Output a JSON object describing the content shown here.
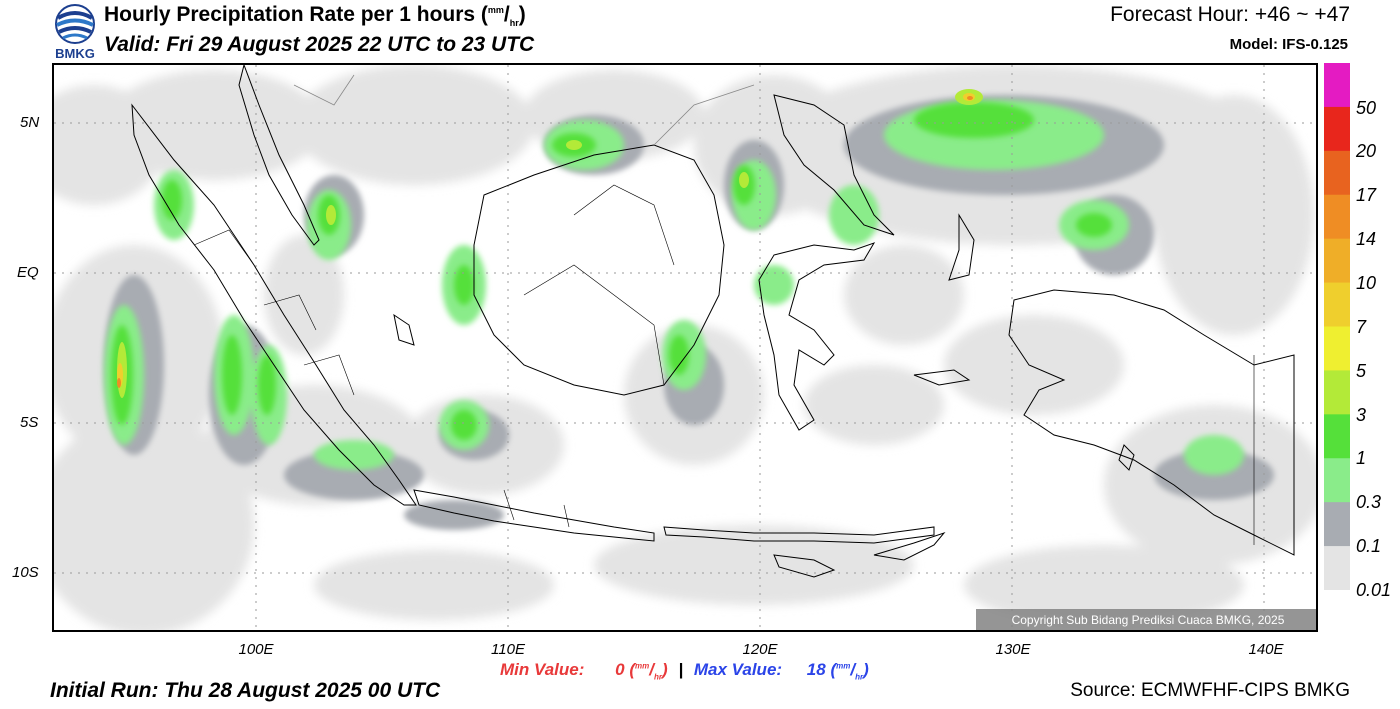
{
  "header": {
    "title_text": "Hourly Precipitation Rate per 1 hours (",
    "unit_num": "mm",
    "unit_sep": "/",
    "unit_den": "hr",
    "title_close": ")",
    "valid": "Valid: Fri 29 August 2025 22 UTC to 23 UTC",
    "forecast_hour": "Forecast Hour: +46 ~ +47",
    "model": "Model: IFS-0.125",
    "logo_text": "BMKG"
  },
  "map": {
    "lat_labels": [
      "5N",
      "EQ",
      "5S",
      "10S"
    ],
    "lon_labels": [
      "100E",
      "110E",
      "120E",
      "130E",
      "140E"
    ],
    "copyright": "Copyright Sub Bidang Prediksi Cuaca BMKG, 2025"
  },
  "colorbar": {
    "labels": [
      "50",
      "20",
      "17",
      "14",
      "10",
      "7",
      "5",
      "3",
      "1",
      "0.3",
      "0.1",
      "0.01"
    ],
    "colors": [
      "#e41bc2",
      "#e8261c",
      "#e8631f",
      "#ef8d24",
      "#efae28",
      "#efcf2d",
      "#efef30",
      "#b3ea38",
      "#55e03a",
      "#8aec8a",
      "#a8acb2",
      "#e4e4e4"
    ]
  },
  "footer": {
    "min_label": "Min Value:",
    "min_value": "0",
    "max_label": "Max Value:",
    "max_value": "18",
    "separator": "|",
    "unit_open": "(",
    "unit_num": "mm",
    "unit_sep": "/",
    "unit_den": "hr",
    "unit_close": ")",
    "initial_run": "Initial Run: Thu 28 August 2025 00 UTC",
    "source": "Source: ECMWFHF-CIPS BMKG"
  }
}
